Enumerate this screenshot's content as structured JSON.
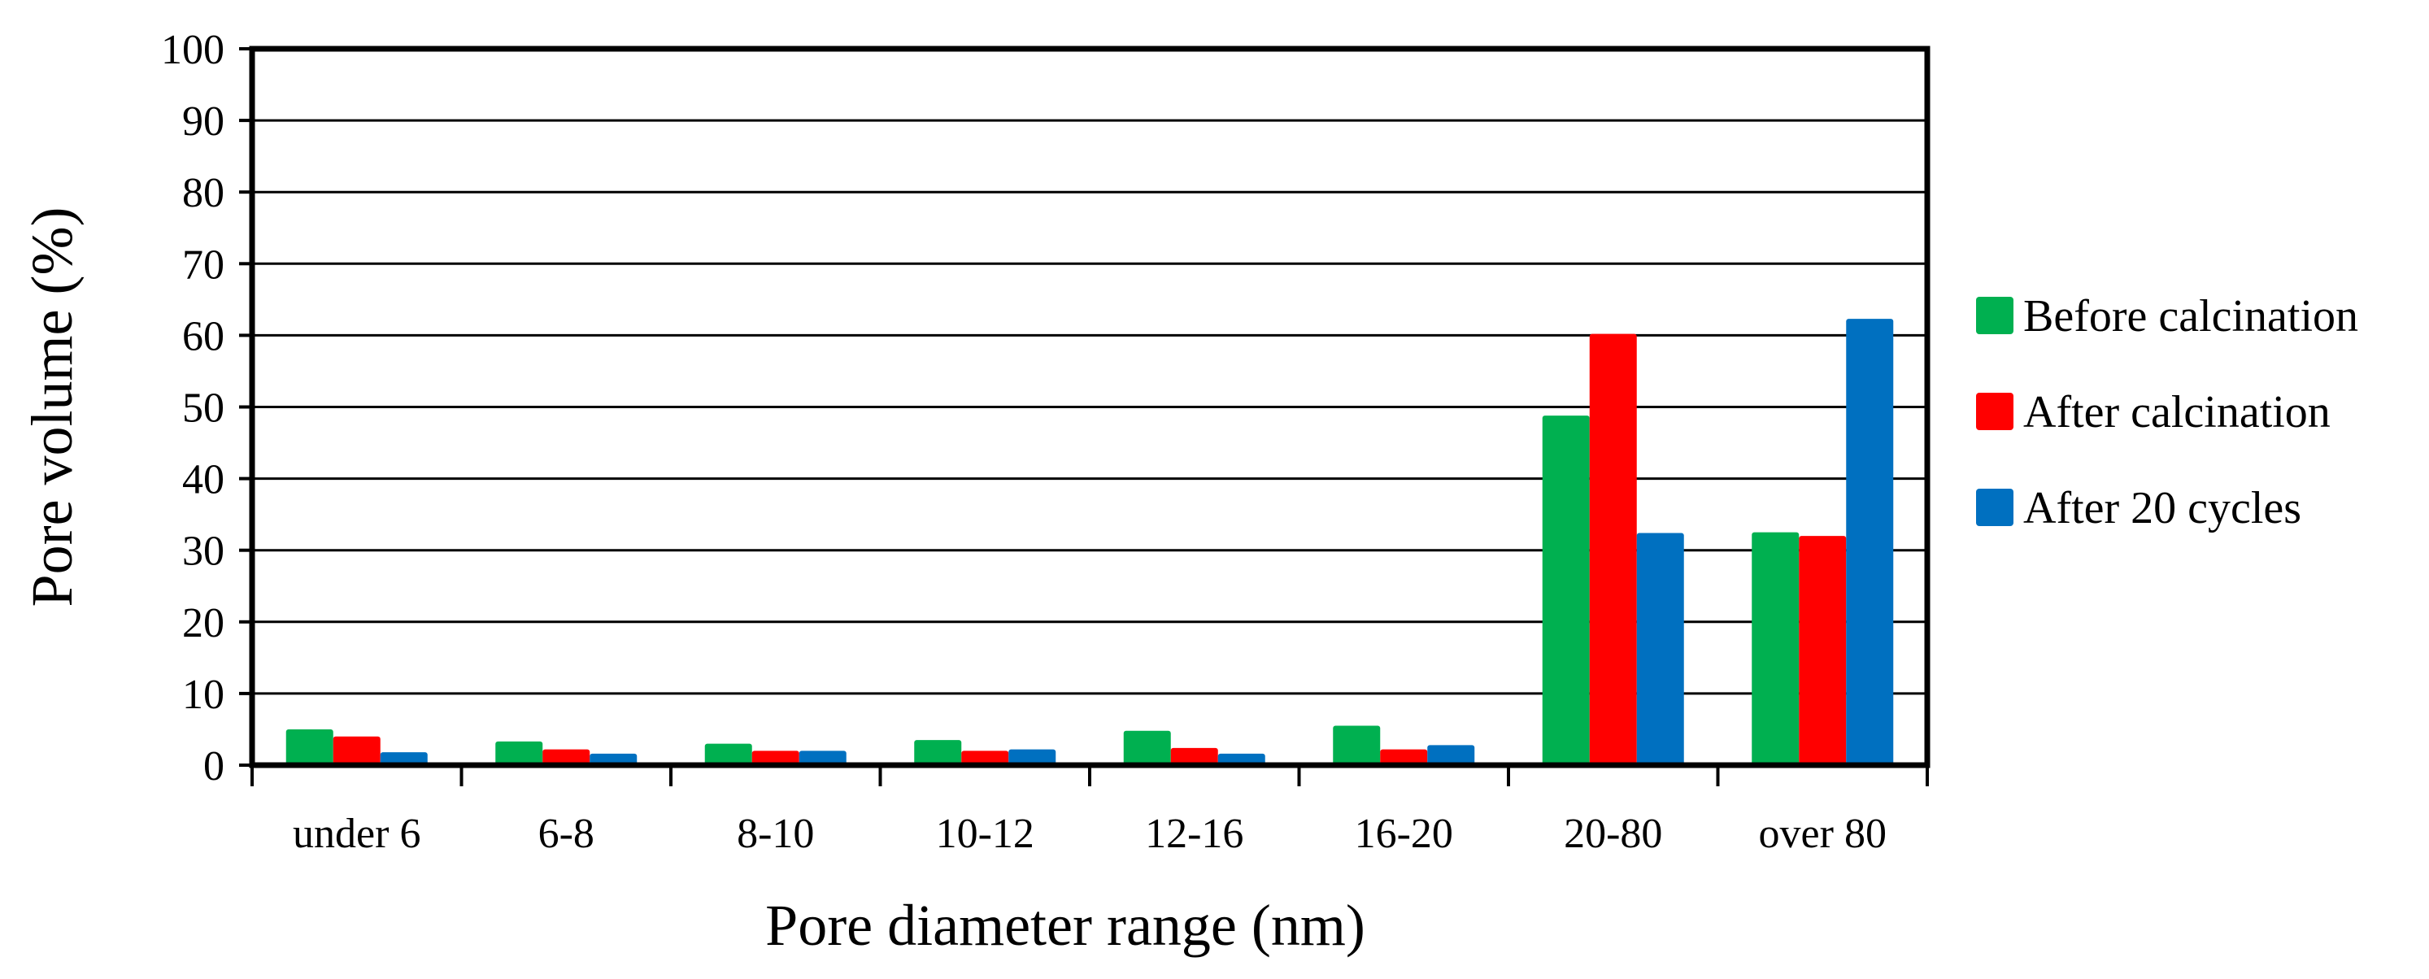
{
  "chart_data": {
    "type": "bar",
    "title": "",
    "xlabel": "Pore diameter range (nm)",
    "ylabel": "Pore volume (%)",
    "ylim": [
      0,
      100
    ],
    "yticks": [
      0,
      10,
      20,
      30,
      40,
      50,
      60,
      70,
      80,
      90,
      100
    ],
    "grid": true,
    "legend_position": "right",
    "categories": [
      "under 6",
      "6-8",
      "8-10",
      "10-12",
      "12-16",
      "16-20",
      "20-80",
      "over 80"
    ],
    "series": [
      {
        "name": "Before calcination",
        "color": "#00b050",
        "values": [
          5.0,
          3.3,
          3.0,
          3.5,
          4.8,
          5.5,
          48.8,
          32.5
        ]
      },
      {
        "name": "After calcination",
        "color": "#ff0000",
        "values": [
          4.0,
          2.2,
          2.0,
          2.0,
          2.4,
          2.2,
          60.2,
          32.0
        ]
      },
      {
        "name": "After 20 cycles",
        "color": "#0070c0",
        "values": [
          1.8,
          1.6,
          2.0,
          2.2,
          1.6,
          2.8,
          32.4,
          62.3
        ]
      }
    ]
  }
}
